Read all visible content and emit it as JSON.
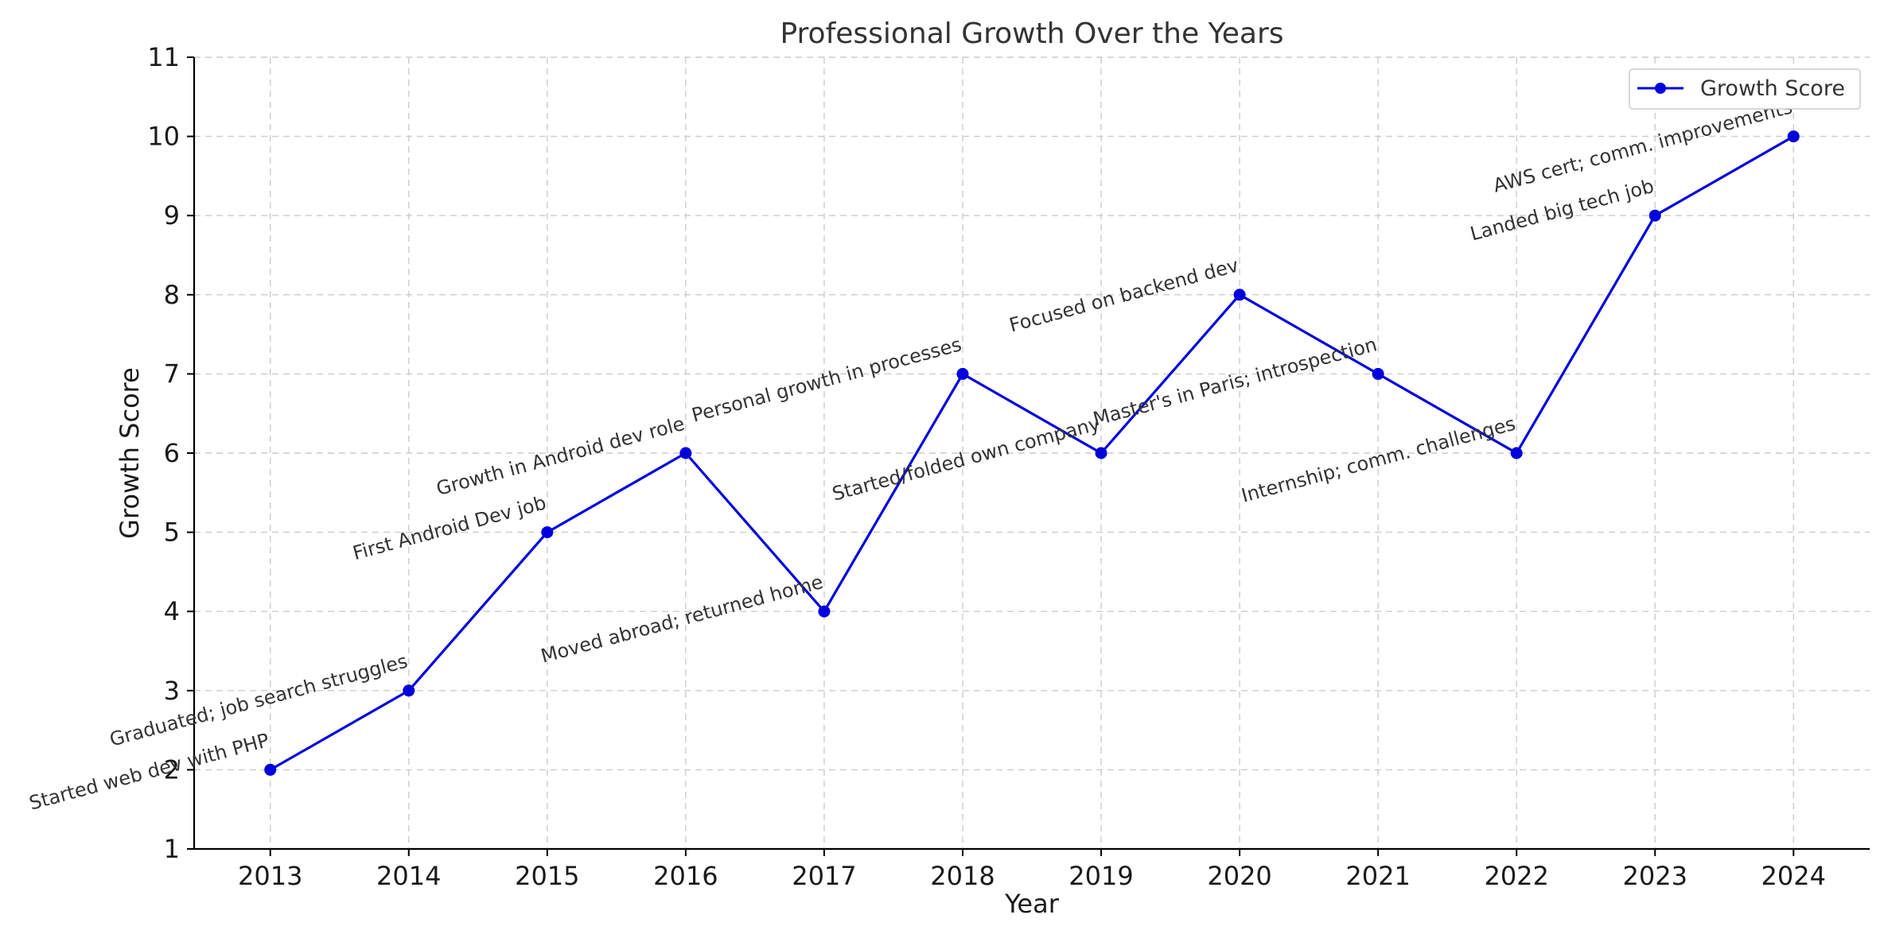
{
  "chart_data": {
    "type": "line",
    "title": "Professional Growth Over the Years",
    "xlabel": "Year",
    "ylabel": "Growth Score",
    "x": [
      2013,
      2014,
      2015,
      2016,
      2017,
      2018,
      2019,
      2020,
      2021,
      2022,
      2023,
      2024
    ],
    "xlim": [
      2012.45,
      2024.55
    ],
    "ylim": [
      1,
      11
    ],
    "yticks": [
      1,
      2,
      3,
      4,
      5,
      6,
      7,
      8,
      9,
      10,
      11
    ],
    "grid": true,
    "legend_position": "top-right",
    "series": [
      {
        "name": "Growth Score",
        "color": "#0000dd",
        "marker": "circle",
        "values": [
          2,
          3,
          5,
          6,
          4,
          7,
          6,
          8,
          7,
          6,
          9,
          10
        ]
      }
    ],
    "annotations": [
      {
        "text": "Started web dev with PHP",
        "x": 2013,
        "y": 2
      },
      {
        "text": "Graduated; job search struggles",
        "x": 2014,
        "y": 3
      },
      {
        "text": "First Android Dev job",
        "x": 2015,
        "y": 5
      },
      {
        "text": "Growth in Android dev role",
        "x": 2016,
        "y": 6
      },
      {
        "text": "Moved abroad; returned home",
        "x": 2017,
        "y": 4
      },
      {
        "text": "Personal growth in processes",
        "x": 2018,
        "y": 7
      },
      {
        "text": "Started/folded own company",
        "x": 2019,
        "y": 6
      },
      {
        "text": "Focused on backend dev",
        "x": 2020,
        "y": 8
      },
      {
        "text": "Master's in Paris; introspection",
        "x": 2021,
        "y": 7
      },
      {
        "text": "Internship; comm. challenges",
        "x": 2022,
        "y": 6
      },
      {
        "text": "Landed big tech job",
        "x": 2023,
        "y": 9
      },
      {
        "text": "AWS cert; comm. improvements",
        "x": 2024,
        "y": 10
      }
    ]
  }
}
